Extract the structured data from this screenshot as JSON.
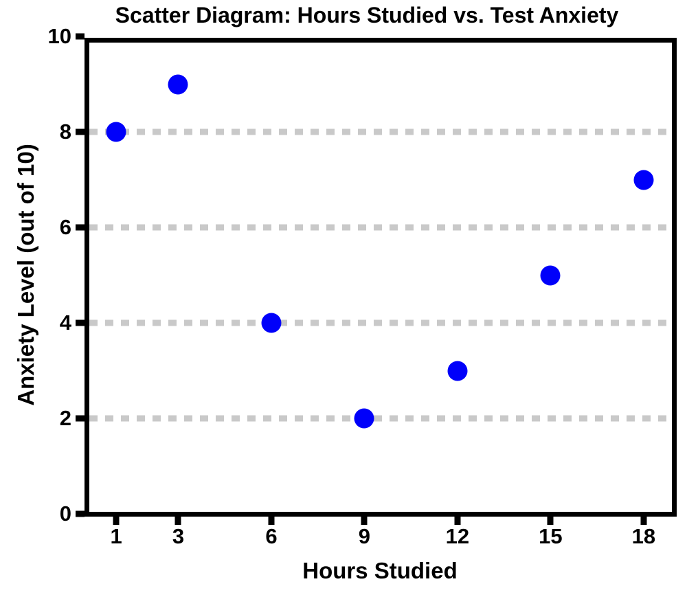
{
  "figure": {
    "title": "Scatter Diagram: Hours Studied vs. Test Anxiety",
    "x_axis_title": "Hours Studied",
    "y_axis_title": "Anxiety Level (out of 10)"
  },
  "chart_data": {
    "type": "scatter",
    "title": "Scatter Diagram: Hours Studied vs. Test Anxiety",
    "xlabel": "Hours Studied",
    "ylabel": "Anxiety Level (out of 10)",
    "x": [
      1,
      3,
      6,
      9,
      12,
      15,
      18
    ],
    "y": [
      8,
      9,
      4,
      2,
      3,
      5,
      7
    ],
    "x_ticks": [
      1,
      3,
      6,
      9,
      12,
      15,
      18
    ],
    "y_ticks": [
      0,
      2,
      4,
      6,
      8,
      10
    ],
    "xlim": [
      0,
      19
    ],
    "ylim": [
      0,
      10
    ],
    "gridlines_y": [
      2,
      4,
      6,
      8
    ],
    "grid_style": "horizontal dashed",
    "legend": "none",
    "colors": {
      "point": "#0000fa",
      "grid": "#c9c9c9",
      "axis": "#000000",
      "text": "#000000"
    }
  }
}
